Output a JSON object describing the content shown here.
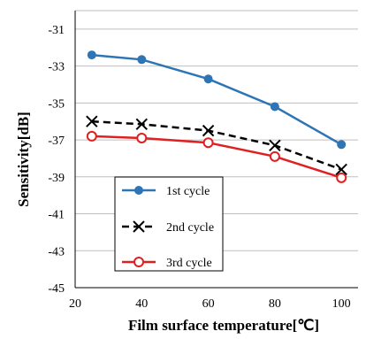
{
  "chart_data": {
    "type": "line",
    "title": "",
    "xlabel": "Film surface temperature[℃]",
    "ylabel": "Sensitivity[dB]",
    "xlim": [
      20,
      105
    ],
    "ylim": [
      -45,
      -30
    ],
    "x_ticks": [
      20,
      40,
      60,
      80,
      100
    ],
    "y_ticks": [
      -31,
      -33,
      -35,
      -37,
      -39,
      -41,
      -43,
      -45
    ],
    "grid": "horizontal",
    "legend_position": "bottom-left",
    "series": [
      {
        "name": "1st cycle",
        "color": "#2E75B6",
        "dash": "solid",
        "marker": "filled-circle",
        "x": [
          25,
          40,
          60,
          80,
          100
        ],
        "y": [
          -32.4,
          -32.65,
          -33.7,
          -35.2,
          -37.25
        ]
      },
      {
        "name": "2nd cycle",
        "color": "#000000",
        "dash": "dashed",
        "marker": "x",
        "x": [
          25,
          40,
          60,
          80,
          100
        ],
        "y": [
          -36.0,
          -36.15,
          -36.5,
          -37.3,
          -38.6
        ]
      },
      {
        "name": "3rd cycle",
        "color": "#E02020",
        "dash": "solid",
        "marker": "open-circle",
        "x": [
          25,
          40,
          60,
          80,
          100
        ],
        "y": [
          -36.8,
          -36.9,
          -37.15,
          -37.9,
          -39.05
        ]
      }
    ]
  }
}
